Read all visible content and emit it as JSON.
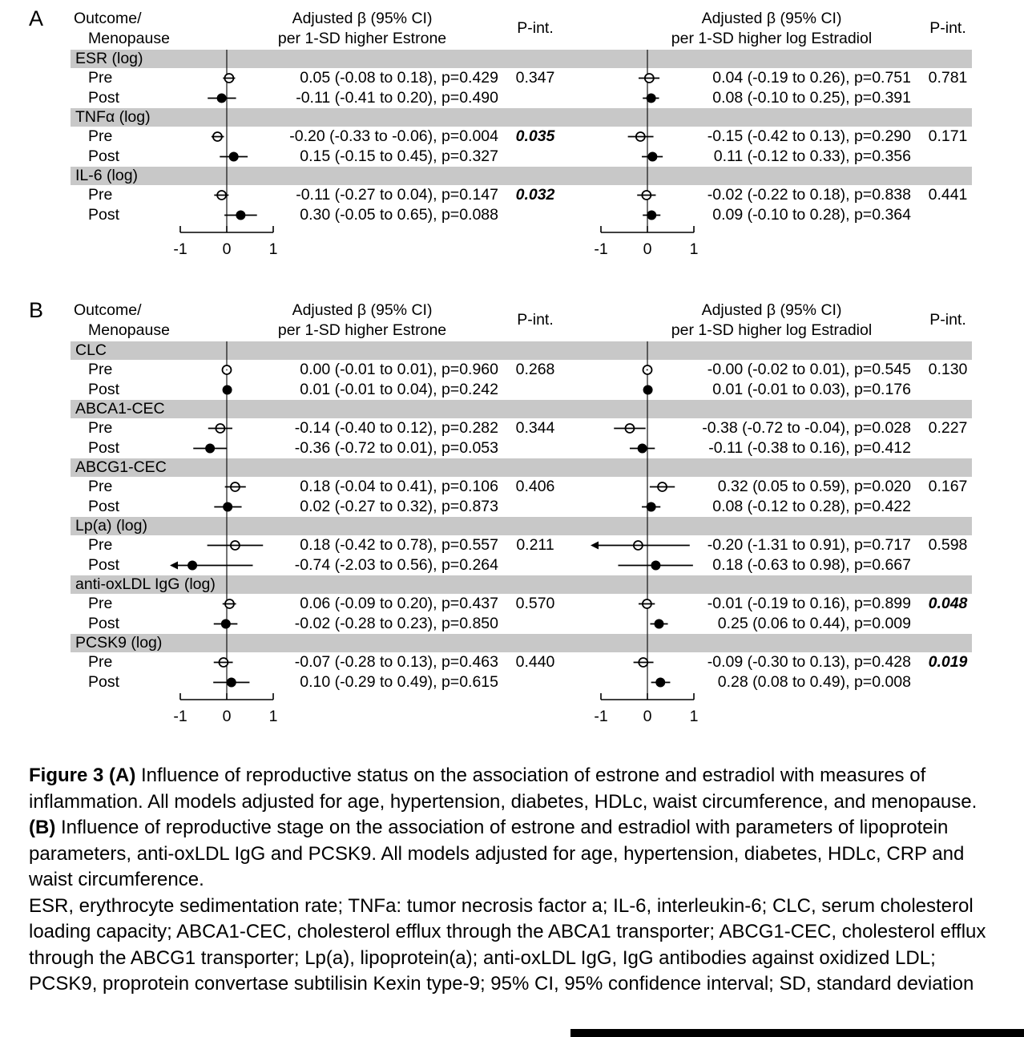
{
  "colors": {
    "band_gray": "#c8c8c8",
    "bottom_bar": "#000000",
    "ink": "#000000"
  },
  "chart_data": {
    "type": "forest",
    "axis": {
      "ticks": [
        -1,
        0,
        1
      ],
      "min": -1,
      "max": 1
    },
    "legend": {
      "pre_marker": "open circle",
      "post_marker": "filled circle"
    },
    "panels": [
      {
        "label": "A",
        "columns": {
          "outcome_header": [
            "Outcome/",
            "Menopause"
          ],
          "estrone_header": [
            "Adjusted β (95% CI)",
            "per 1-SD higher Estrone"
          ],
          "estradiol_header": [
            "Adjusted β (95% CI)",
            "per 1-SD higher log Estradiol"
          ],
          "pint_header": "P-int."
        },
        "groups": [
          {
            "outcome": "ESR (log)",
            "pint_estrone": {
              "value": "0.347",
              "bold": false
            },
            "pint_estradiol": {
              "value": "0.781",
              "bold": false
            },
            "rows": [
              {
                "label": "Pre",
                "marker": "open",
                "estrone": {
                  "est": 0.05,
                  "lo": -0.08,
                  "hi": 0.18,
                  "p": 0.429,
                  "text": "0.05 (-0.08 to 0.18), p=0.429"
                },
                "estradiol": {
                  "est": 0.04,
                  "lo": -0.19,
                  "hi": 0.26,
                  "p": 0.751,
                  "text": "0.04 (-0.19 to 0.26), p=0.751"
                }
              },
              {
                "label": "Post",
                "marker": "filled",
                "estrone": {
                  "est": -0.11,
                  "lo": -0.41,
                  "hi": 0.2,
                  "p": 0.49,
                  "text": "-0.11 (-0.41 to 0.20), p=0.490"
                },
                "estradiol": {
                  "est": 0.08,
                  "lo": -0.1,
                  "hi": 0.25,
                  "p": 0.391,
                  "text": "0.08 (-0.10 to 0.25), p=0.391"
                }
              }
            ]
          },
          {
            "outcome": "TNFα (log)",
            "pint_estrone": {
              "value": "0.035",
              "bold": true
            },
            "pint_estradiol": {
              "value": "0.171",
              "bold": false
            },
            "rows": [
              {
                "label": "Pre",
                "marker": "open",
                "estrone": {
                  "est": -0.2,
                  "lo": -0.33,
                  "hi": -0.06,
                  "p": 0.004,
                  "text": "-0.20 (-0.33 to -0.06), p=0.004"
                },
                "estradiol": {
                  "est": -0.15,
                  "lo": -0.42,
                  "hi": 0.13,
                  "p": 0.29,
                  "text": "-0.15 (-0.42 to 0.13), p=0.290"
                }
              },
              {
                "label": "Post",
                "marker": "filled",
                "estrone": {
                  "est": 0.15,
                  "lo": -0.15,
                  "hi": 0.45,
                  "p": 0.327,
                  "text": "0.15 (-0.15 to 0.45), p=0.327"
                },
                "estradiol": {
                  "est": 0.11,
                  "lo": -0.12,
                  "hi": 0.33,
                  "p": 0.356,
                  "text": "0.11 (-0.12 to 0.33), p=0.356"
                }
              }
            ]
          },
          {
            "outcome": "IL-6 (log)",
            "pint_estrone": {
              "value": "0.032",
              "bold": true
            },
            "pint_estradiol": {
              "value": "0.441",
              "bold": false
            },
            "rows": [
              {
                "label": "Pre",
                "marker": "open",
                "estrone": {
                  "est": -0.11,
                  "lo": -0.27,
                  "hi": 0.04,
                  "p": 0.147,
                  "text": "-0.11 (-0.27 to 0.04), p=0.147"
                },
                "estradiol": {
                  "est": -0.02,
                  "lo": -0.22,
                  "hi": 0.18,
                  "p": 0.838,
                  "text": "-0.02 (-0.22 to 0.18), p=0.838"
                }
              },
              {
                "label": "Post",
                "marker": "filled",
                "estrone": {
                  "est": 0.3,
                  "lo": -0.05,
                  "hi": 0.65,
                  "p": 0.088,
                  "text": "0.30 (-0.05 to 0.65), p=0.088"
                },
                "estradiol": {
                  "est": 0.09,
                  "lo": -0.1,
                  "hi": 0.28,
                  "p": 0.364,
                  "text": "0.09 (-0.10 to 0.28), p=0.364"
                }
              }
            ]
          }
        ]
      },
      {
        "label": "B",
        "columns": {
          "outcome_header": [
            "Outcome/",
            "Menopause"
          ],
          "estrone_header": [
            "Adjusted β (95% CI)",
            "per 1-SD higher Estrone"
          ],
          "estradiol_header": [
            "Adjusted β (95% CI)",
            "per 1-SD higher log Estradiol"
          ],
          "pint_header": "P-int."
        },
        "groups": [
          {
            "outcome": "CLC",
            "pint_estrone": {
              "value": "0.268",
              "bold": false
            },
            "pint_estradiol": {
              "value": "0.130",
              "bold": false
            },
            "rows": [
              {
                "label": "Pre",
                "marker": "open",
                "estrone": {
                  "est": 0.0,
                  "lo": -0.01,
                  "hi": 0.01,
                  "p": 0.96,
                  "text": "0.00 (-0.01 to 0.01), p=0.960"
                },
                "estradiol": {
                  "est": -0.0,
                  "lo": -0.02,
                  "hi": 0.01,
                  "p": 0.545,
                  "text": "-0.00 (-0.02 to 0.01), p=0.545"
                }
              },
              {
                "label": "Post",
                "marker": "filled",
                "estrone": {
                  "est": 0.01,
                  "lo": -0.01,
                  "hi": 0.04,
                  "p": 0.242,
                  "text": "0.01 (-0.01 to 0.04), p=0.242"
                },
                "estradiol": {
                  "est": 0.01,
                  "lo": -0.01,
                  "hi": 0.03,
                  "p": 0.176,
                  "text": "0.01 (-0.01 to 0.03), p=0.176"
                }
              }
            ]
          },
          {
            "outcome": "ABCA1-CEC",
            "pint_estrone": {
              "value": "0.344",
              "bold": false
            },
            "pint_estradiol": {
              "value": "0.227",
              "bold": false
            },
            "rows": [
              {
                "label": "Pre",
                "marker": "open",
                "estrone": {
                  "est": -0.14,
                  "lo": -0.4,
                  "hi": 0.12,
                  "p": 0.282,
                  "text": "-0.14 (-0.40 to 0.12), p=0.282"
                },
                "estradiol": {
                  "est": -0.38,
                  "lo": -0.72,
                  "hi": -0.04,
                  "p": 0.028,
                  "text": "-0.38 (-0.72 to -0.04), p=0.028"
                }
              },
              {
                "label": "Post",
                "marker": "filled",
                "estrone": {
                  "est": -0.36,
                  "lo": -0.72,
                  "hi": 0.01,
                  "p": 0.053,
                  "text": "-0.36 (-0.72 to 0.01), p=0.053"
                },
                "estradiol": {
                  "est": -0.11,
                  "lo": -0.38,
                  "hi": 0.16,
                  "p": 0.412,
                  "text": "-0.11 (-0.38 to 0.16), p=0.412"
                }
              }
            ]
          },
          {
            "outcome": "ABCG1-CEC",
            "pint_estrone": {
              "value": "0.406",
              "bold": false
            },
            "pint_estradiol": {
              "value": "0.167",
              "bold": false
            },
            "rows": [
              {
                "label": "Pre",
                "marker": "open",
                "estrone": {
                  "est": 0.18,
                  "lo": -0.04,
                  "hi": 0.41,
                  "p": 0.106,
                  "text": "0.18 (-0.04 to 0.41), p=0.106"
                },
                "estradiol": {
                  "est": 0.32,
                  "lo": 0.05,
                  "hi": 0.59,
                  "p": 0.02,
                  "text": "0.32 (0.05 to 0.59), p=0.020"
                }
              },
              {
                "label": "Post",
                "marker": "filled",
                "estrone": {
                  "est": 0.02,
                  "lo": -0.27,
                  "hi": 0.32,
                  "p": 0.873,
                  "text": "0.02 (-0.27 to 0.32), p=0.873"
                },
                "estradiol": {
                  "est": 0.08,
                  "lo": -0.12,
                  "hi": 0.28,
                  "p": 0.422,
                  "text": "0.08 (-0.12 to 0.28), p=0.422"
                }
              }
            ]
          },
          {
            "outcome": "Lp(a) (log)",
            "pint_estrone": {
              "value": "0.211",
              "bold": false
            },
            "pint_estradiol": {
              "value": "0.598",
              "bold": false
            },
            "rows": [
              {
                "label": "Pre",
                "marker": "open",
                "estrone": {
                  "est": 0.18,
                  "lo": -0.42,
                  "hi": 0.78,
                  "p": 0.557,
                  "text": "0.18 (-0.42 to 0.78), p=0.557"
                },
                "estradiol": {
                  "est": -0.2,
                  "lo": -1.31,
                  "hi": 0.91,
                  "p": 0.717,
                  "text": "-0.20 (-1.31 to 0.91), p=0.717"
                }
              },
              {
                "label": "Post",
                "marker": "filled",
                "estrone": {
                  "est": -0.74,
                  "lo": -2.03,
                  "hi": 0.56,
                  "p": 0.264,
                  "text": "-0.74 (-2.03 to 0.56), p=0.264"
                },
                "estradiol": {
                  "est": 0.18,
                  "lo": -0.63,
                  "hi": 0.98,
                  "p": 0.667,
                  "text": "0.18 (-0.63 to 0.98), p=0.667"
                }
              }
            ]
          },
          {
            "outcome": "anti-oxLDL IgG (log)",
            "pint_estrone": {
              "value": "0.570",
              "bold": false
            },
            "pint_estradiol": {
              "value": "0.048",
              "bold": true
            },
            "rows": [
              {
                "label": "Pre",
                "marker": "open",
                "estrone": {
                  "est": 0.06,
                  "lo": -0.09,
                  "hi": 0.2,
                  "p": 0.437,
                  "text": "0.06 (-0.09 to 0.20), p=0.437"
                },
                "estradiol": {
                  "est": -0.01,
                  "lo": -0.19,
                  "hi": 0.16,
                  "p": 0.899,
                  "text": "-0.01 (-0.19 to 0.16), p=0.899"
                }
              },
              {
                "label": "Post",
                "marker": "filled",
                "estrone": {
                  "est": -0.02,
                  "lo": -0.28,
                  "hi": 0.23,
                  "p": 0.85,
                  "text": "-0.02 (-0.28 to 0.23), p=0.850"
                },
                "estradiol": {
                  "est": 0.25,
                  "lo": 0.06,
                  "hi": 0.44,
                  "p": 0.009,
                  "text": "0.25 (0.06 to 0.44), p=0.009"
                }
              }
            ]
          },
          {
            "outcome": "PCSK9 (log)",
            "pint_estrone": {
              "value": "0.440",
              "bold": false
            },
            "pint_estradiol": {
              "value": "0.019",
              "bold": true
            },
            "rows": [
              {
                "label": "Pre",
                "marker": "open",
                "estrone": {
                  "est": -0.07,
                  "lo": -0.28,
                  "hi": 0.13,
                  "p": 0.463,
                  "text": "-0.07 (-0.28 to 0.13), p=0.463"
                },
                "estradiol": {
                  "est": -0.09,
                  "lo": -0.3,
                  "hi": 0.13,
                  "p": 0.428,
                  "text": "-0.09 (-0.30 to 0.13), p=0.428"
                }
              },
              {
                "label": "Post",
                "marker": "filled",
                "estrone": {
                  "est": 0.1,
                  "lo": -0.29,
                  "hi": 0.49,
                  "p": 0.615,
                  "text": "0.10 (-0.29 to 0.49), p=0.615"
                },
                "estradiol": {
                  "est": 0.28,
                  "lo": 0.08,
                  "hi": 0.49,
                  "p": 0.008,
                  "text": "0.28 (0.08 to 0.49), p=0.008"
                }
              }
            ]
          }
        ]
      }
    ]
  },
  "caption": {
    "paragraphs": [
      {
        "segments": [
          {
            "text": "Figure 3 (A)",
            "bold": true
          },
          {
            "text": " Influence of reproductive status on the association of estrone and estradiol with measures of inflammation. All models adjusted for age, hypertension, diabetes, HDLc, waist circumference, and menopause. ",
            "bold": false
          },
          {
            "text": "(B)",
            "bold": true
          },
          {
            "text": " Influence of reproductive stage on the association of estrone and estradiol with parameters of lipoprotein parameters, anti-oxLDL IgG and PCSK9. All models adjusted for age, hypertension, diabetes, HDLc, CRP and waist circumference.",
            "bold": false
          }
        ]
      },
      {
        "segments": [
          {
            "text": "ESR, erythrocyte sedimentation rate; TNFa: tumor necrosis factor a; IL-6, interleukin-6; CLC, serum cholesterol loading capacity; ABCA1-CEC, cholesterol efflux through the ABCA1 transporter; ABCG1-CEC, cholesterol efflux through the ABCG1 transporter; Lp(a), lipoprotein(a); anti-oxLDL IgG, IgG antibodies against oxidized LDL; PCSK9, proprotein convertase subtilisin Kexin type-9; 95% CI, 95% confidence interval; SD, standard deviation",
            "bold": false
          }
        ]
      }
    ]
  }
}
